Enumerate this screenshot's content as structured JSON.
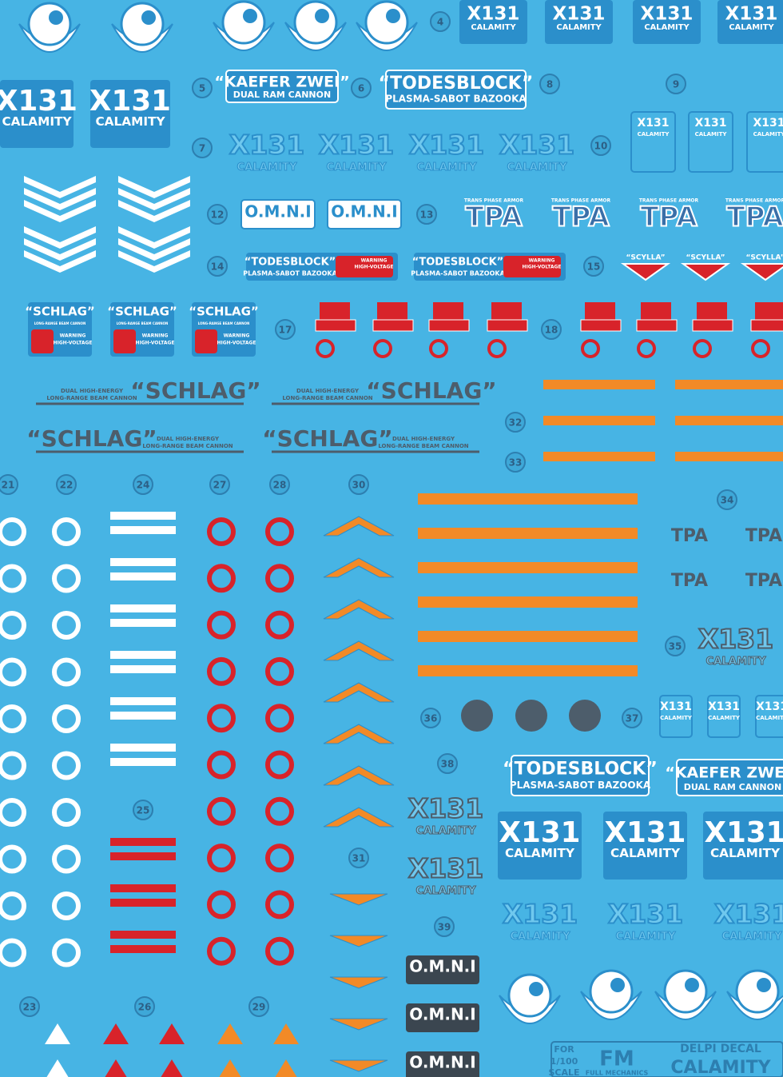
{
  "decal_text": {
    "x131": "X131",
    "calamity": "CALAMITY",
    "kaefer": "“KAEFER ZWEI”",
    "drc": "DUAL RAM CANNON",
    "todes": "“TODESBLOCK”",
    "psb": "PLASMA-SABOT BAZOOKA",
    "omni": "O.M.N.I",
    "tpa": "TPA",
    "tpa_sub": "TRANS PHASE ARMOR",
    "scylla": "“SCYLLA”",
    "schlag": "“SCHLAG”",
    "dhe": "DUAL HIGH-ENERGY",
    "lrbc": "LONG-RANGE BEAM CANNON",
    "warning": "WARNING",
    "hv": "HIGH-VOLTAGE"
  },
  "markers": [
    4,
    5,
    6,
    8,
    9,
    7,
    10,
    12,
    13,
    14,
    15,
    17,
    18,
    32,
    33,
    21,
    22,
    24,
    27,
    28,
    30,
    34,
    35,
    36,
    37,
    38,
    25,
    31,
    39,
    23,
    26,
    29
  ],
  "brand": {
    "for": "FOR",
    "scale": "1/100",
    "scale_word": "SCALE",
    "fm": "FM",
    "full": "FULL MECHANICS",
    "delpi": "DELPI DECAL",
    "calamity": "CALAMITY"
  }
}
